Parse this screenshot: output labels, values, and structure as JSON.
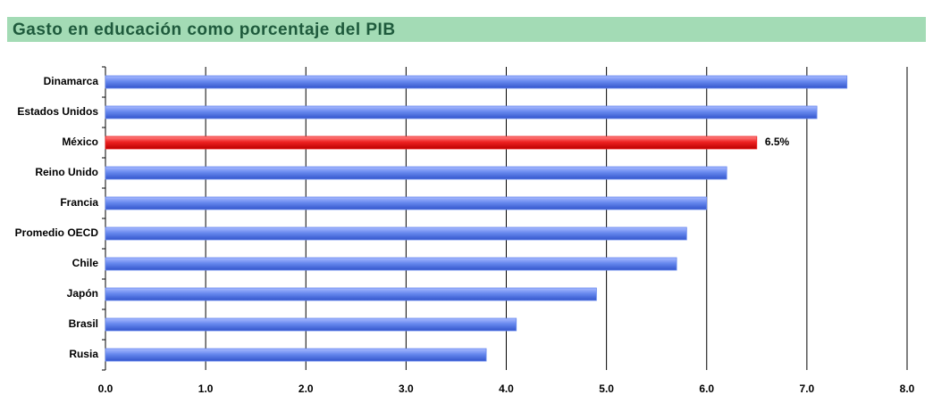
{
  "chart_data": {
    "type": "barh",
    "title": "Gasto en educación como porcentaje del PIB",
    "categories": [
      "Dinamarca",
      "Estados Unidos",
      "México",
      "Reino Unido",
      "Francia",
      "Promedio OECD",
      "Chile",
      "Japón",
      "Brasil",
      "Rusia"
    ],
    "values": [
      7.4,
      7.1,
      6.5,
      6.2,
      6.0,
      5.8,
      5.7,
      4.9,
      4.1,
      3.8
    ],
    "value_labels": [
      null,
      null,
      "6.5%",
      null,
      null,
      null,
      null,
      null,
      null,
      null
    ],
    "colors": [
      "#6688ee",
      "#6688ee",
      "#ee2222",
      "#6688ee",
      "#6688ee",
      "#6688ee",
      "#6688ee",
      "#6688ee",
      "#6688ee",
      "#6688ee"
    ],
    "xlim": [
      0,
      8
    ],
    "xticks": [
      {
        "value": 0,
        "label": "0.0"
      },
      {
        "value": 1,
        "label": "1.0"
      },
      {
        "value": 2,
        "label": "2.0"
      },
      {
        "value": 3,
        "label": "3.0"
      },
      {
        "value": 4,
        "label": "4.0"
      },
      {
        "value": 5,
        "label": "5.0"
      },
      {
        "value": 6,
        "label": "6.0"
      },
      {
        "value": 7,
        "label": "7.0"
      },
      {
        "value": 8,
        "label": "8.0"
      }
    ],
    "grid": true
  }
}
